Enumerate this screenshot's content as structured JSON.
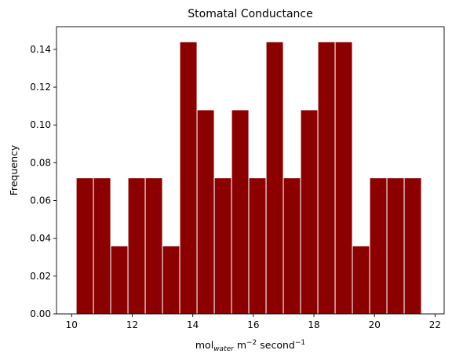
{
  "chart_data": {
    "type": "bar",
    "title": "Stomatal Conductance",
    "xlabel": {
      "base": "mol",
      "sub": "water",
      "mid": " m",
      "sup1": "−2",
      "tail": " second",
      "sup2": "−1"
    },
    "ylabel": "Frequency",
    "bar_color": "#8b0000",
    "edge_color": "#ffffff",
    "xlim": [
      9.5,
      22.3
    ],
    "ylim": [
      0,
      0.152
    ],
    "xticks": [
      10,
      12,
      14,
      16,
      18,
      20,
      22
    ],
    "yticks": [
      0.0,
      0.02,
      0.04,
      0.06,
      0.08,
      0.1,
      0.12,
      0.14
    ],
    "bins": [
      {
        "x0": 10.15,
        "x1": 10.72,
        "value": 0.072
      },
      {
        "x0": 10.72,
        "x1": 11.29,
        "value": 0.072
      },
      {
        "x0": 11.29,
        "x1": 11.86,
        "value": 0.036
      },
      {
        "x0": 11.86,
        "x1": 12.43,
        "value": 0.072
      },
      {
        "x0": 12.43,
        "x1": 13.0,
        "value": 0.072
      },
      {
        "x0": 13.0,
        "x1": 13.57,
        "value": 0.036
      },
      {
        "x0": 13.57,
        "x1": 14.14,
        "value": 0.144
      },
      {
        "x0": 14.14,
        "x1": 14.71,
        "value": 0.108
      },
      {
        "x0": 14.71,
        "x1": 15.28,
        "value": 0.072
      },
      {
        "x0": 15.28,
        "x1": 15.85,
        "value": 0.108
      },
      {
        "x0": 15.85,
        "x1": 16.42,
        "value": 0.072
      },
      {
        "x0": 16.42,
        "x1": 16.99,
        "value": 0.144
      },
      {
        "x0": 16.99,
        "x1": 17.56,
        "value": 0.072
      },
      {
        "x0": 17.56,
        "x1": 18.13,
        "value": 0.108
      },
      {
        "x0": 18.13,
        "x1": 18.7,
        "value": 0.144
      },
      {
        "x0": 18.7,
        "x1": 19.27,
        "value": 0.144
      },
      {
        "x0": 19.27,
        "x1": 19.84,
        "value": 0.036
      },
      {
        "x0": 19.84,
        "x1": 20.41,
        "value": 0.072
      },
      {
        "x0": 20.41,
        "x1": 20.98,
        "value": 0.072
      },
      {
        "x0": 20.98,
        "x1": 21.55,
        "value": 0.072
      }
    ]
  }
}
